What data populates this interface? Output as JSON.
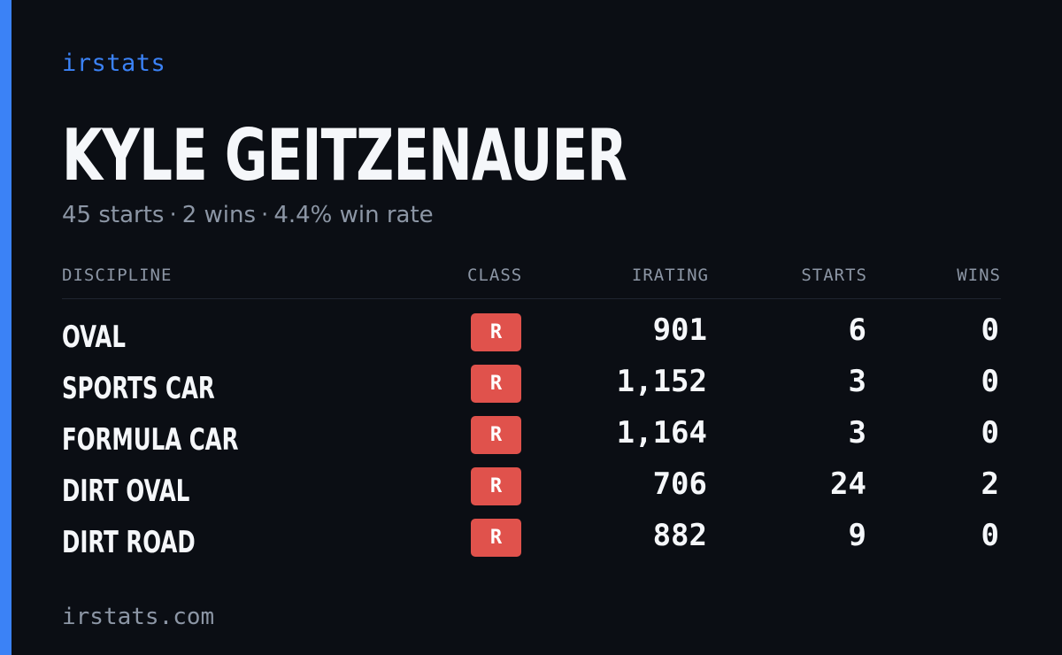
{
  "brand": "irstats",
  "driver": {
    "name": "KYLE GEITZENAUER",
    "starts": "45 starts",
    "wins": "2 wins",
    "win_rate": "4.4% win rate",
    "separator": "·"
  },
  "table": {
    "headers": {
      "discipline": "DISCIPLINE",
      "class": "CLASS",
      "irating": "IRATING",
      "starts": "STARTS",
      "wins": "WINS"
    },
    "rows": [
      {
        "discipline": "OVAL",
        "class": "R",
        "irating": "901",
        "starts": "6",
        "wins": "0"
      },
      {
        "discipline": "SPORTS CAR",
        "class": "R",
        "irating": "1,152",
        "starts": "3",
        "wins": "0"
      },
      {
        "discipline": "FORMULA CAR",
        "class": "R",
        "irating": "1,164",
        "starts": "3",
        "wins": "0"
      },
      {
        "discipline": "DIRT OVAL",
        "class": "R",
        "irating": "706",
        "starts": "24",
        "wins": "2"
      },
      {
        "discipline": "DIRT ROAD",
        "class": "R",
        "irating": "882",
        "starts": "9",
        "wins": "0"
      }
    ]
  },
  "footer": "irstats.com",
  "colors": {
    "accent": "#3b82f6",
    "background": "#0b0e14",
    "class_r": "#e0524c",
    "muted": "#8c96a5"
  }
}
